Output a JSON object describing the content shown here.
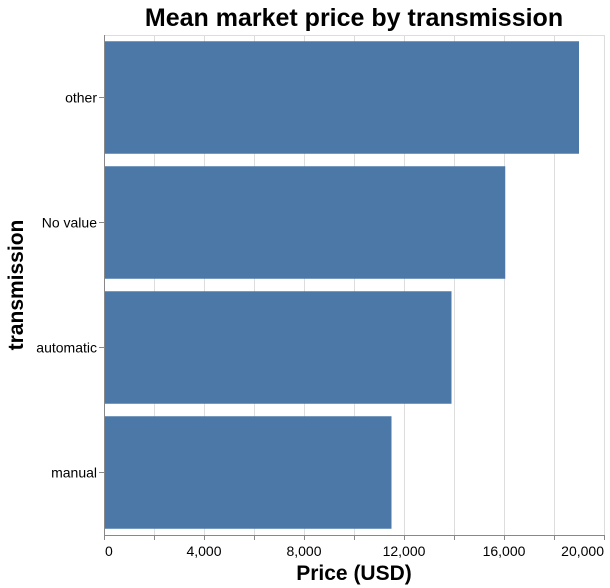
{
  "chart_data": {
    "type": "bar",
    "orientation": "horizontal",
    "title": "Mean market price by transmission",
    "xlabel": "Price (USD)",
    "ylabel": "transmission",
    "categories": [
      "other",
      "No value",
      "automatic",
      "manual"
    ],
    "values": [
      19000,
      16050,
      13900,
      11500
    ],
    "xlim": [
      0,
      20000
    ],
    "xticks": [
      0,
      4000,
      8000,
      12000,
      16000,
      20000
    ],
    "xtick_labels": [
      "0",
      "4,000",
      "8,000",
      "12,000",
      "16,000",
      "20,000"
    ],
    "grid": true,
    "bar_color": "#4c78a8"
  }
}
